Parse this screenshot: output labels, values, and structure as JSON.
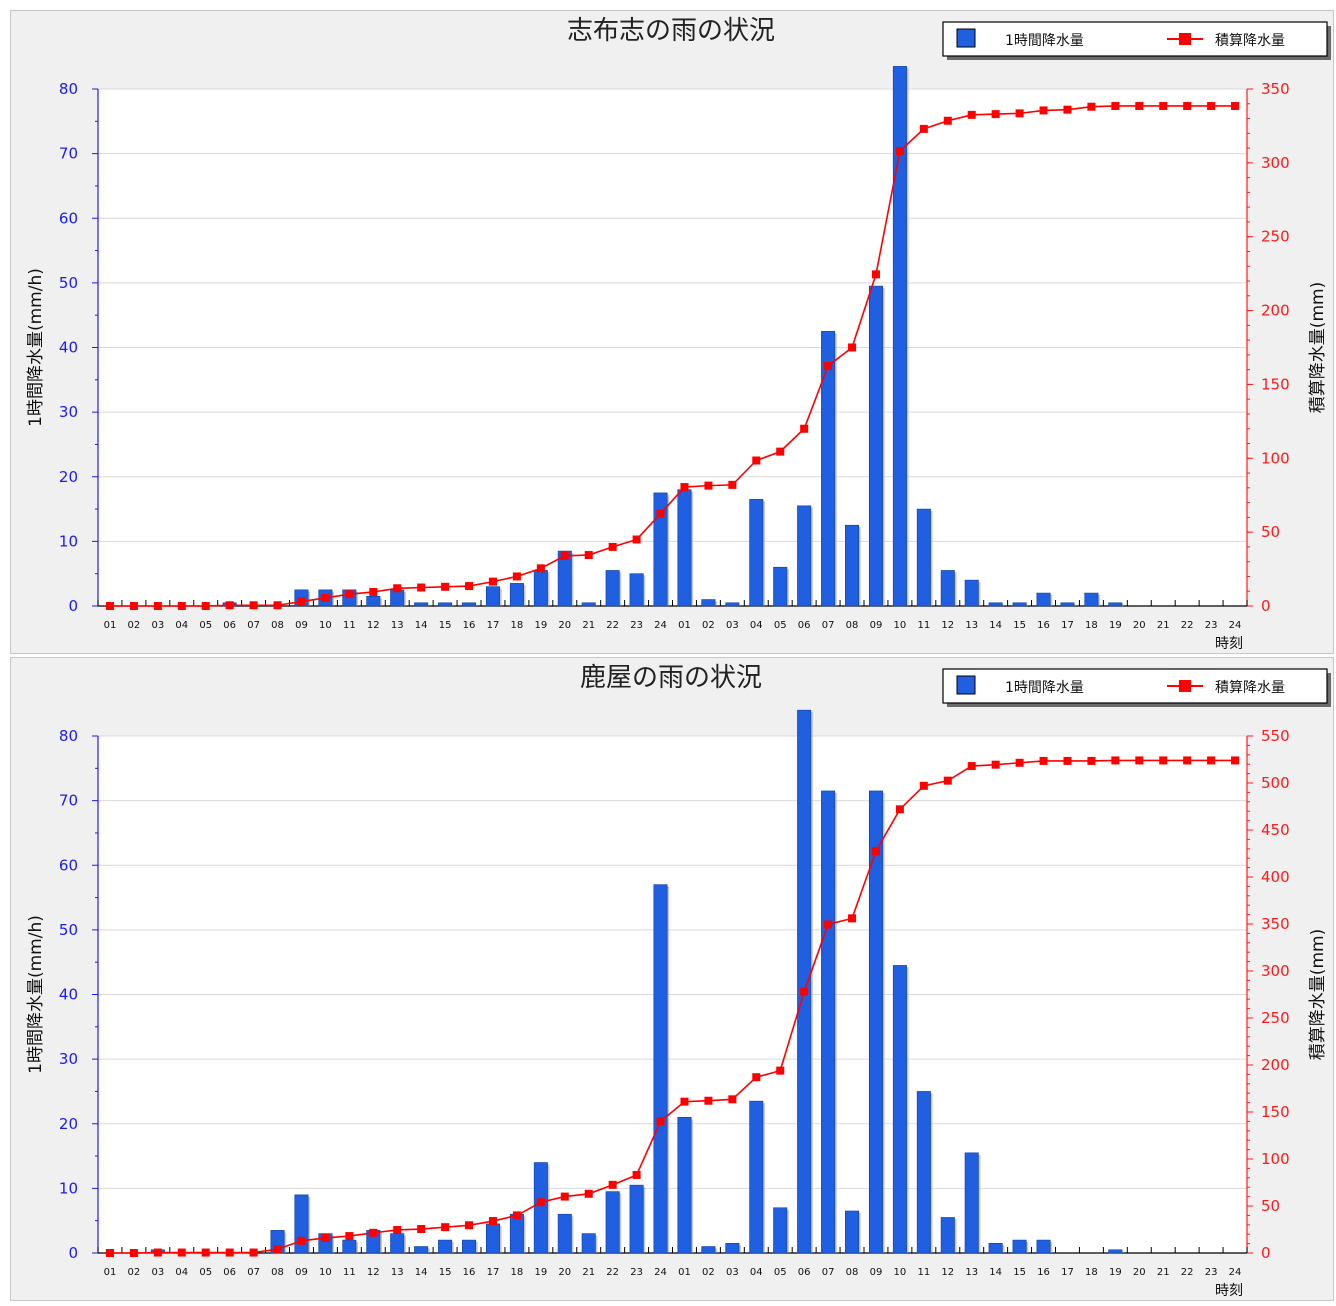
{
  "chart_data": [
    {
      "type": "bar",
      "title": "志布志の雨の状況",
      "xlabel": "時刻",
      "ylabel": "1時間降水量(mm/h)",
      "y2label": "積算降水量(mm)",
      "ylim": [
        0,
        80
      ],
      "y2lim": [
        0,
        350
      ],
      "y2_ticks": [
        0,
        50,
        100,
        150,
        200,
        250,
        300,
        350
      ],
      "legend_position": "top-right",
      "colors": {
        "bar": "#1f5fe0",
        "line": "#ff0000"
      },
      "categories": [
        "01",
        "02",
        "03",
        "04",
        "05",
        "06",
        "07",
        "08",
        "09",
        "10",
        "11",
        "12",
        "13",
        "14",
        "15",
        "16",
        "17",
        "18",
        "19",
        "20",
        "21",
        "22",
        "23",
        "24",
        "01",
        "02",
        "03",
        "04",
        "05",
        "06",
        "07",
        "08",
        "09",
        "10",
        "11",
        "12",
        "13",
        "14",
        "15",
        "16",
        "17",
        "18",
        "19",
        "20",
        "21",
        "22",
        "23",
        "24"
      ],
      "series": [
        {
          "name": "1時間降水量",
          "type": "bar",
          "values": [
            0,
            0,
            0,
            0,
            0,
            0.5,
            0,
            0,
            2.5,
            2.5,
            2.5,
            1.5,
            2.5,
            0.5,
            0.5,
            0.5,
            3,
            3.5,
            5.5,
            8.5,
            0.5,
            5.5,
            5,
            17.5,
            18,
            1,
            0.5,
            16.5,
            6,
            15.5,
            42.5,
            12.5,
            49.5,
            83.5,
            15,
            5.5,
            4,
            0.5,
            0.5,
            2,
            0.5,
            2,
            0.5,
            0,
            0,
            0,
            0,
            0
          ]
        },
        {
          "name": "積算降水量",
          "type": "line",
          "values": [
            0,
            0,
            0,
            0,
            0,
            0.5,
            0.5,
            0.5,
            3,
            5.5,
            8,
            9.5,
            12,
            12.5,
            13,
            13.5,
            16.5,
            20,
            25.5,
            34,
            34.5,
            40,
            45,
            62.5,
            80.5,
            81.5,
            82,
            98.5,
            104.5,
            120,
            162.5,
            175,
            224.5,
            308,
            323,
            328.5,
            332.5,
            333,
            333.5,
            335.5,
            336,
            338,
            338.5,
            338.5,
            338.5,
            338.5,
            338.5,
            338.5
          ]
        }
      ]
    },
    {
      "type": "bar",
      "title": "鹿屋の雨の状況",
      "xlabel": "時刻",
      "ylabel": "1時間降水量(mm/h)",
      "y2label": "積算降水量(mm)",
      "ylim": [
        0,
        80
      ],
      "y2lim": [
        0,
        550
      ],
      "y2_ticks": [
        0,
        50,
        100,
        150,
        200,
        250,
        300,
        350,
        400,
        450,
        500,
        550
      ],
      "legend_position": "top-right",
      "colors": {
        "bar": "#1f5fe0",
        "line": "#ff0000"
      },
      "categories": [
        "01",
        "02",
        "03",
        "04",
        "05",
        "06",
        "07",
        "08",
        "09",
        "10",
        "11",
        "12",
        "13",
        "14",
        "15",
        "16",
        "17",
        "18",
        "19",
        "20",
        "21",
        "22",
        "23",
        "24",
        "01",
        "02",
        "03",
        "04",
        "05",
        "06",
        "07",
        "08",
        "09",
        "10",
        "11",
        "12",
        "13",
        "14",
        "15",
        "16",
        "17",
        "18",
        "19",
        "20",
        "21",
        "22",
        "23",
        "24"
      ],
      "series": [
        {
          "name": "1時間降水量",
          "type": "bar",
          "values": [
            0,
            0,
            0.5,
            0,
            0,
            0,
            0,
            3.5,
            9,
            3,
            2,
            3.5,
            3,
            1,
            2,
            2,
            4.5,
            6,
            14,
            6,
            3,
            9.5,
            10.5,
            57,
            21,
            1,
            1.5,
            23.5,
            7,
            84,
            71.5,
            6.5,
            71.5,
            44.5,
            25,
            5.5,
            15.5,
            1.5,
            2,
            2,
            0,
            0,
            0.5,
            0,
            0,
            0,
            0,
            0
          ]
        },
        {
          "name": "積算降水量",
          "type": "line",
          "values": [
            0,
            0,
            0.5,
            0.5,
            0.5,
            0.5,
            0.5,
            4,
            13,
            16,
            18,
            21.5,
            24.5,
            25.5,
            27.5,
            29.5,
            34,
            40,
            54,
            60,
            63,
            72.5,
            83,
            140,
            161,
            162,
            163.5,
            187,
            194,
            278,
            349.5,
            356,
            427.5,
            472,
            497,
            502.5,
            518,
            519.5,
            521.5,
            523.5,
            523.5,
            523.5,
            524,
            524,
            524,
            524,
            524,
            524
          ]
        }
      ]
    }
  ]
}
